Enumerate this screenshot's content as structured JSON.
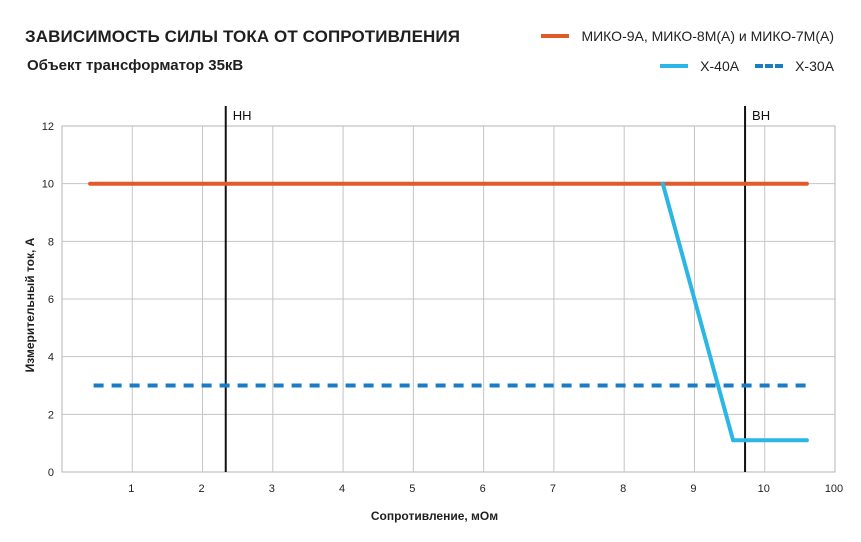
{
  "header": {
    "title": "ЗАВИСИМОСТЬ СИЛЫ ТОКА ОТ СОПРОТИВЛЕНИЯ",
    "subtitle": "Объект трансформатор 35кВ"
  },
  "legend": [
    {
      "label": "МИКО-9А, МИКО-8М(А) и МИКО-7М(А)",
      "color": "#e05a2b",
      "style": "solid"
    },
    {
      "label": "X-40A",
      "color": "#2bb6e6",
      "style": "solid"
    },
    {
      "label": "X-30A",
      "color": "#1a7cc4",
      "style": "dashed"
    }
  ],
  "chart_data": {
    "type": "line",
    "title": "ЗАВИСИМОСТЬ СИЛЫ ТОКА ОТ СОПРОТИВЛЕНИЯ",
    "subtitle": "Объект трансформатор 35кВ",
    "xlabel": "Сопротивление, мОм",
    "ylabel": "Измерительный ток, А",
    "x_ticks": [
      "1",
      "2",
      "3",
      "4",
      "5",
      "6",
      "7",
      "8",
      "9",
      "10",
      "100"
    ],
    "xlim": [
      0,
      11
    ],
    "ylim": [
      0,
      12
    ],
    "y_ticks": [
      0,
      2,
      4,
      6,
      8,
      10,
      12
    ],
    "grid": true,
    "legend_position": "top-right",
    "series": [
      {
        "name": "МИКО-9А, МИКО-8М(А) и МИКО-7М(А)",
        "color": "#e05a2b",
        "style": "solid",
        "points": [
          [
            0.4,
            10
          ],
          [
            10.6,
            10
          ]
        ]
      },
      {
        "name": "X-40A",
        "color": "#2bb6e6",
        "style": "solid",
        "points": [
          [
            8.55,
            10
          ],
          [
            9.55,
            1.1
          ],
          [
            10.6,
            1.1
          ]
        ]
      },
      {
        "name": "X-30A",
        "color": "#1a7cc4",
        "style": "dashed",
        "points": [
          [
            0.45,
            3
          ],
          [
            10.6,
            3
          ]
        ]
      }
    ],
    "markers": [
      {
        "label": "НН",
        "x": 2.33
      },
      {
        "label": "ВН",
        "x": 9.72
      }
    ]
  }
}
